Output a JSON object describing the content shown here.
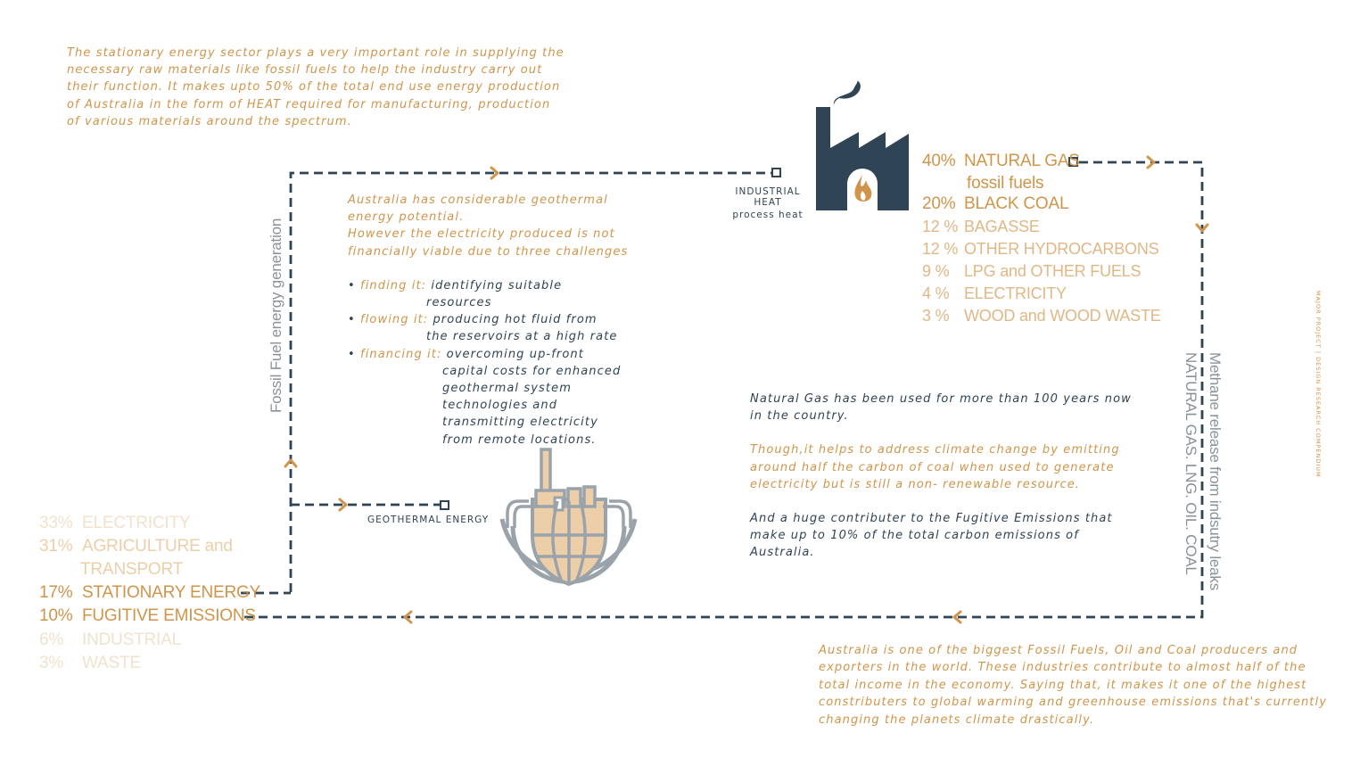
{
  "intro": "The stationary energy sector plays a very important role in supplying the necessary raw materials like fossil fuels to help the industry carry out their function. It makes upto 50% of the total end use energy production of Australia in the form of HEAT required for manufacturing, production of various materials around the spectrum.",
  "industrial": {
    "title": "INDUSTRIAL HEAT",
    "subtitle": "process heat"
  },
  "geothermal_label": "GEOTHERMAL ENERGY",
  "geo_text": {
    "p1": "Australia has considerable geothermal energy potential.",
    "p2": "However the electricity produced is not financially viable due to three challenges",
    "bullets": [
      {
        "key": "finding it:",
        "line1": "identifying suitable",
        "rest": "resources"
      },
      {
        "key": "flowing it:",
        "line1": "producing hot fluid from",
        "rest": "the reservoirs at a high rate"
      },
      {
        "key": "financing it:",
        "line1": "overcoming up-front",
        "rest": "capital costs for enhanced geothermal system technologies and transmitting electricity from remote locations."
      }
    ]
  },
  "fuels": [
    {
      "pct": "40%",
      "label": "NATURAL GAS"
    },
    {
      "pct": "",
      "label": "fossil fuels"
    },
    {
      "pct": "20%",
      "label": "BLACK COAL"
    },
    {
      "pct": "12 %",
      "label": "BAGASSE"
    },
    {
      "pct": "12 %",
      "label": "OTHER  HYDROCARBONS"
    },
    {
      "pct": "9 %",
      "label": "LPG and OTHER FUELS"
    },
    {
      "pct": "4 %",
      "label": "ELECTRICITY"
    },
    {
      "pct": "3 %",
      "label": "WOOD and WOOD WASTE"
    }
  ],
  "sectors": [
    {
      "pct": "33%",
      "label": "ELECTRICITY"
    },
    {
      "pct": "31%",
      "label": "AGRICULTURE and"
    },
    {
      "pct": "",
      "label": "TRANSPORT"
    },
    {
      "pct": "17%",
      "label": "STATIONARY ENERGY"
    },
    {
      "pct": "10%",
      "label": "FUGITIVE EMISSIONS"
    },
    {
      "pct": "6%",
      "label": "INDUSTRIAL"
    },
    {
      "pct": "3%",
      "label": "WASTE"
    }
  ],
  "ng_text": {
    "p1": "Natural Gas has been used for more than 100 years now in the country.",
    "p2": "Though,it helps to address climate change by emitting around half the carbon of coal when used to generate electricity but is still a non- renewable resource.",
    "p3": "And a huge contributer to the Fugitive Emissions that make up to 10% of the total carbon emissions of Australia."
  },
  "bottom_text": "Australia is one of the biggest Fossil Fuels, Oil and Coal producers and exporters in the world. These industries contribute to almost half of the total income in the economy. Saying that, it makes it one of the highest constributers to global warming and greenhouse emissions that's currently changing the planets climate drastically.",
  "vertical_left": "Fossil Fuel energy generation",
  "vertical_right_1": "Methane release from indsutry leaks",
  "vertical_right_2": "NATURAL GAS. LNG. OIL. COAL",
  "side_label": "MAJOR PROJECT  |  DESIGN RESEARCH COMPENDIUM",
  "colors": {
    "navy": "#2f4455",
    "orange": "#d0954a",
    "light": "#eccfa8",
    "grey": "#9aa3aa"
  }
}
